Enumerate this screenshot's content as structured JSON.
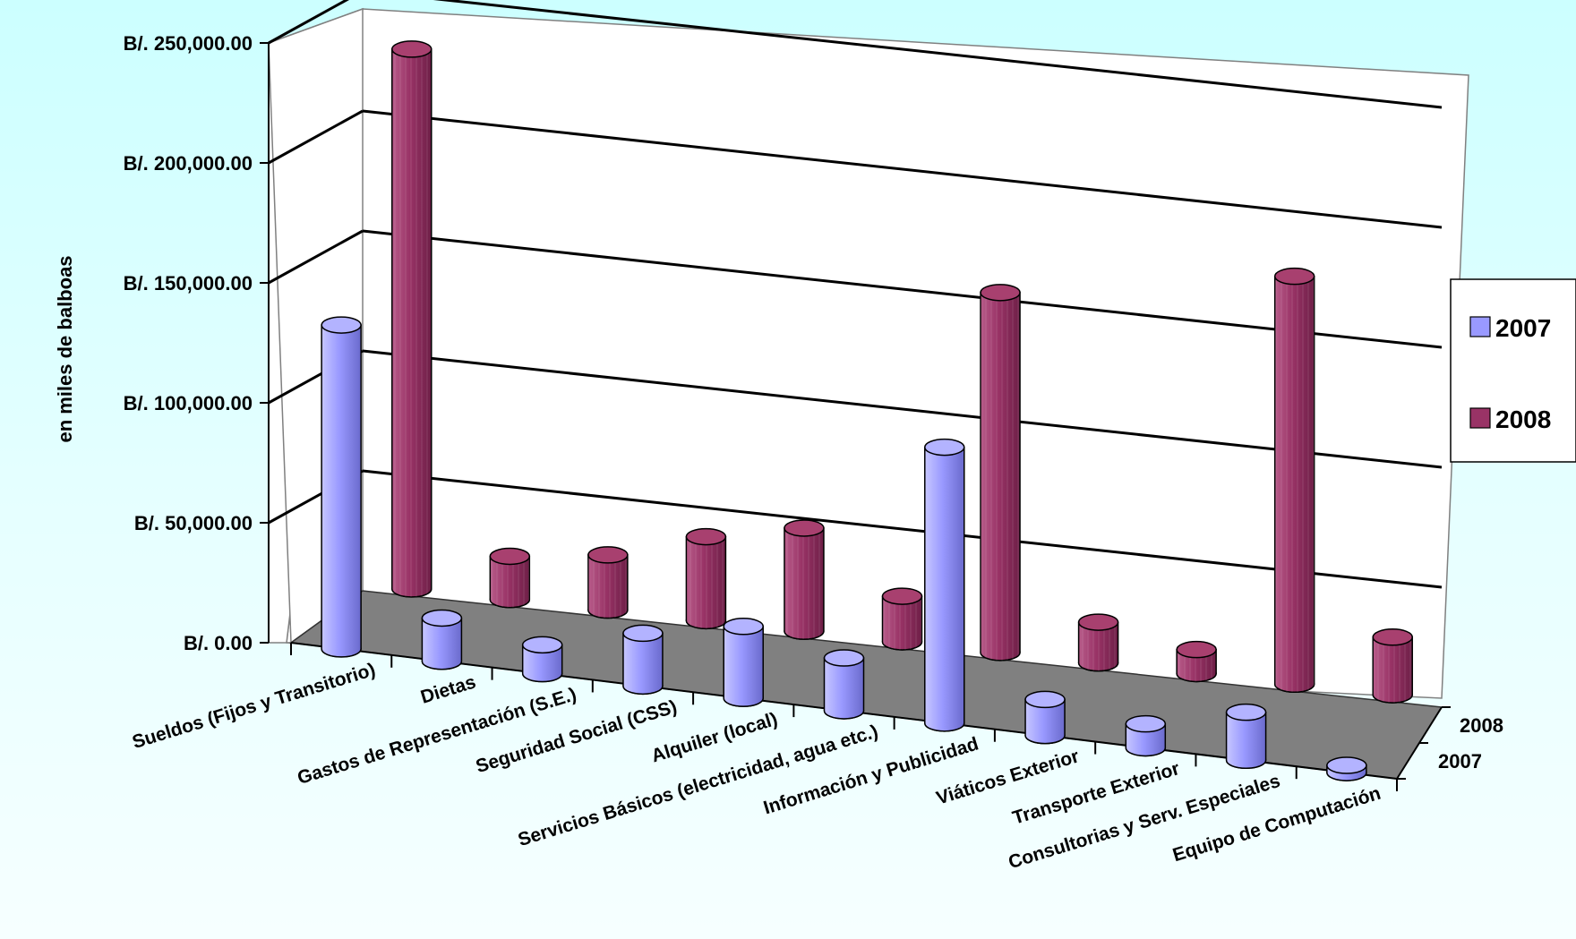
{
  "chart_data": {
    "type": "bar",
    "style": "3d-cylinder",
    "title": "",
    "ylabel": "en miles de balboas",
    "xlabel": "",
    "ylim": [
      0,
      250000
    ],
    "y_ticks": [
      "B/. 0.00",
      "B/. 50,000.00",
      "B/. 100,000.00",
      "B/. 150,000.00",
      "B/. 200,000.00",
      "B/. 250,000.00"
    ],
    "categories": [
      "Sueldos (Fijos y Transitorio)",
      "Dietas",
      "Gastos de Representación (S.E.)",
      "Seguridad Social (CSS)",
      "Alquiler (local)",
      "Servicios Básicos (electricidad, agua etc.)",
      "Información y Publicidad",
      "Viáticos Exterior",
      "Transporte Exterior",
      "Consultorias y Serv. Especiales",
      "Equipo de Computación"
    ],
    "depth_labels": [
      "2008",
      "2007"
    ],
    "series": [
      {
        "name": "2007",
        "color": "#9999ff",
        "values": [
          135000,
          18000,
          12000,
          22000,
          30000,
          22000,
          115000,
          15000,
          10000,
          20000,
          3000
        ]
      },
      {
        "name": "2008",
        "color": "#993366",
        "values": [
          225000,
          18000,
          23000,
          35000,
          43000,
          19000,
          150000,
          17000,
          10000,
          170000,
          24000
        ]
      }
    ],
    "legend_position": "right",
    "grid": true
  },
  "colors": {
    "floor": "#808080",
    "wall": "#ffffff",
    "series_2007": "#9999ff",
    "series_2008": "#993366"
  }
}
